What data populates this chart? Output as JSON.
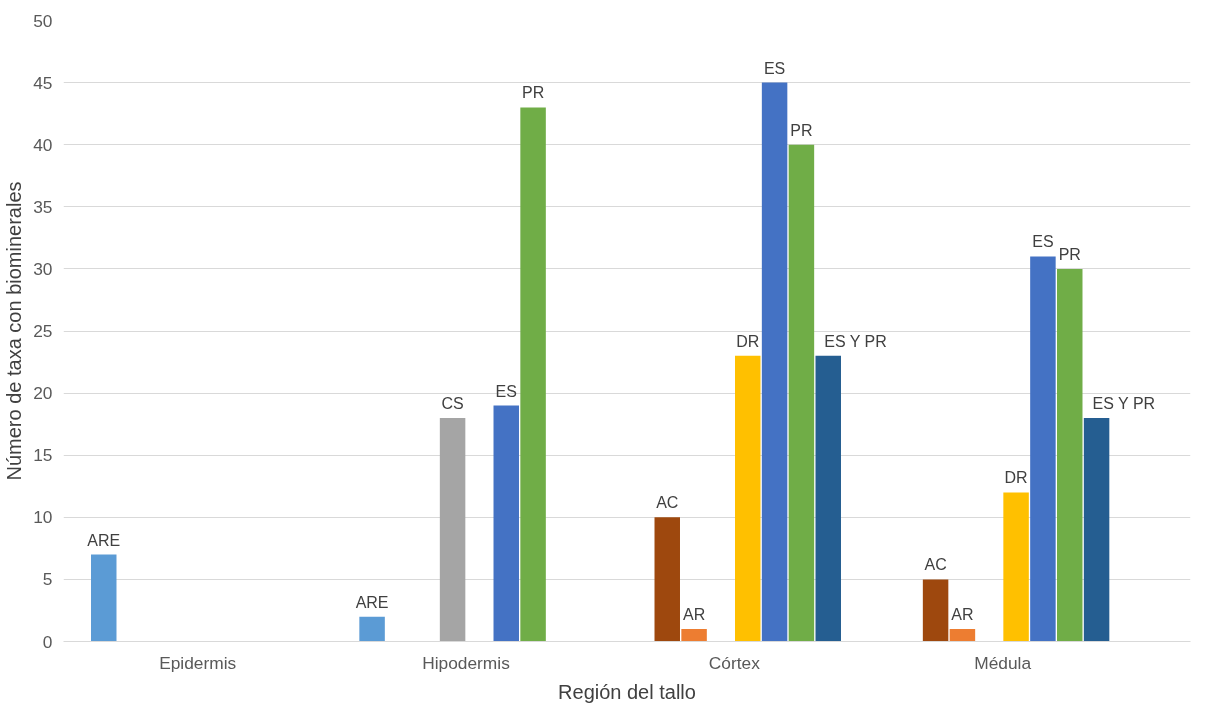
{
  "chart_data": {
    "type": "bar",
    "xlabel": "Región del tallo",
    "ylabel": "Número de taxa con biominerales",
    "categories": [
      "Epidermis",
      "Hipodermis",
      "Córtex",
      "Médula"
    ],
    "series": [
      {
        "name": "ARE",
        "color": "#5b9bd5",
        "values": [
          7,
          2,
          null,
          null
        ]
      },
      {
        "name": "AC",
        "color": "#9e480e",
        "values": [
          null,
          null,
          10,
          5
        ]
      },
      {
        "name": "AR",
        "color": "#ed7d31",
        "values": [
          null,
          null,
          1,
          1
        ]
      },
      {
        "name": "CS",
        "color": "#a5a5a5",
        "values": [
          null,
          18,
          null,
          null
        ]
      },
      {
        "name": "DR",
        "color": "#ffc000",
        "values": [
          null,
          null,
          23,
          12
        ]
      },
      {
        "name": "ES",
        "color": "#4472c4",
        "values": [
          null,
          19,
          45,
          31
        ]
      },
      {
        "name": "PR",
        "color": "#70ad47",
        "values": [
          null,
          43,
          40,
          30
        ]
      },
      {
        "name": "ES Y PR",
        "color": "#255e91",
        "values": [
          null,
          null,
          23,
          18
        ]
      }
    ],
    "ylim": [
      0,
      50
    ],
    "yticks": [
      0,
      5,
      10,
      15,
      20,
      25,
      30,
      35,
      40,
      45,
      50
    ],
    "grid": "y",
    "legend": false
  }
}
